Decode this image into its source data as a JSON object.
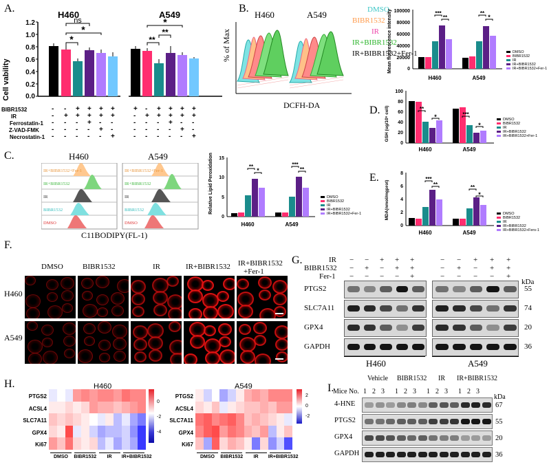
{
  "panels": {
    "A": "A.",
    "B": "B.",
    "C": "C.",
    "D": "D.",
    "E": "E.",
    "F": "F.",
    "G": "G.",
    "H": "H.",
    "I": "I."
  },
  "colors": {
    "black": "#000000",
    "pink": "#ff2d6f",
    "teal": "#1a8c8c",
    "purple": "#5b1f86",
    "lavender": "#b07cff",
    "skyblue": "#72c8ff",
    "orange": "#ffb870",
    "green": "#49d24a",
    "red": "#e84343",
    "cyan": "#5fd6d6"
  },
  "panelA": {
    "h460": "H460",
    "a549": "A549",
    "ylabel": "Cell vability",
    "yticks": [
      "0.0",
      "0.2",
      "0.4",
      "0.6",
      "0.8",
      "1.0",
      "1.2"
    ],
    "sig": {
      "ns": "ns",
      "s1": "*",
      "s2": "*",
      "s3": "**",
      "s4": "**",
      "s5": "*"
    },
    "rows": [
      {
        "label": "BIBR1532",
        "h460": [
          "-",
          "-",
          "+",
          "+",
          "+",
          "+"
        ],
        "a549": [
          "+",
          "-",
          "+",
          "+",
          "+",
          "+"
        ]
      },
      {
        "label": "IR",
        "h460": [
          "-",
          "+",
          "+",
          "+",
          "+",
          "+"
        ],
        "a549": [
          "-",
          "+",
          "+",
          "+",
          "+",
          "+"
        ]
      },
      {
        "label": "Ferrostatin-1",
        "h460": [
          "-",
          "-",
          "-",
          "+",
          "-",
          "-"
        ],
        "a549": [
          "-",
          "-",
          "-",
          "+",
          "-",
          "-"
        ]
      },
      {
        "label": "Z-VAD-FMK",
        "h460": [
          "-",
          "-",
          "-",
          "-",
          "+",
          "-"
        ],
        "a549": [
          "-",
          "-",
          "-",
          "-",
          "+",
          "-"
        ]
      },
      {
        "label": "Necrostatin-1",
        "h460": [
          "-",
          "-",
          "-",
          "-",
          "-",
          "+"
        ],
        "a549": [
          "-",
          "-",
          "-",
          "-",
          "-",
          "+"
        ]
      }
    ]
  },
  "panelB": {
    "h460": "H460",
    "a549": "A549",
    "xlabel": "DCFH-DA",
    "ylabel": "% of Max",
    "legend": [
      "DMSO",
      "BIBR1532",
      "IR",
      "IR+BIBR1532",
      "IR+BIBR1532+Fer-1"
    ],
    "chart_ylabel": "Mean fluorescence intensity",
    "yticks": [
      "0",
      "20000",
      "40000",
      "60000",
      "80000",
      "100000"
    ],
    "groups": [
      "H460",
      "A549"
    ],
    "sig": [
      "***",
      "**",
      "**",
      "*"
    ],
    "legend_small": [
      "DMSO",
      "BIBR1532",
      "IR",
      "IR+BIBR1532",
      "IR+BIBR1532+Fer-1"
    ]
  },
  "panelC": {
    "h460": "H460",
    "a549": "A549",
    "xlabel": "C11BODIPY(FL-1)",
    "tracks": [
      "IR+BIBR1532+Fer-1",
      "IR+BIBR1532",
      "IR",
      "BIBR1532",
      "DMSO"
    ],
    "chart_ylabel": "Relative Lipid Peroxidation",
    "yticks": [
      "0",
      "5",
      "10",
      "15"
    ],
    "groups": [
      "H460",
      "A549"
    ],
    "sig": [
      "**",
      "*",
      "***",
      "**"
    ],
    "legend_small": [
      "DMSO",
      "BIBR1532",
      "IR",
      "IR+BIBR1532",
      "IR+BIBR1532+Fer-1"
    ]
  },
  "panelD": {
    "ylabel": "GSH (ug/10⁶ cell)",
    "yticks": [
      "0",
      "20",
      "40",
      "60",
      "80",
      "100"
    ],
    "groups": [
      "H460",
      "A549"
    ],
    "sig": [
      "**",
      "*",
      "***",
      "*"
    ],
    "legend_small": [
      "DMSO",
      "BIBR1532",
      "IR",
      "IR+BIBR1532",
      "IR+BIBR1532+Fer-1"
    ]
  },
  "panelE": {
    "ylabel": "MDA(nmol/mgprot)",
    "yticks": [
      "0",
      "2",
      "4",
      "6",
      "8"
    ],
    "groups": [
      "H460",
      "A549"
    ],
    "sig": [
      "***",
      "**",
      "**",
      "*"
    ],
    "legend_small": [
      "DMSO",
      "BIBR1532",
      "IR",
      "IR+BIBR1532",
      "IR+BIBR1532+Fers-1"
    ]
  },
  "panelF": {
    "cols": [
      "DMSO",
      "BIBR1532",
      "IR",
      "IR+BIBR1532",
      "IR+BIBR1532",
      "+Fer-1"
    ],
    "rows": [
      "H460",
      "A549"
    ]
  },
  "panelG": {
    "rows": [
      {
        "label": "IR",
        "h460": [
          "−",
          "−",
          "+",
          "+",
          "+"
        ],
        "a549": [
          "−",
          "−",
          "+",
          "+",
          "+"
        ]
      },
      {
        "label": "BIBR1532",
        "h460": [
          "−",
          "+",
          "−",
          "+",
          "+"
        ],
        "a549": [
          "−",
          "+",
          "−",
          "+",
          "+"
        ]
      },
      {
        "label": "Fer-1",
        "h460": [
          "−",
          "−",
          "−",
          "−",
          "+"
        ],
        "a549": [
          "−",
          "−",
          "−",
          "−",
          "+"
        ]
      }
    ],
    "kda": "kDa",
    "blots": [
      {
        "name": "PTGS2",
        "kda": "55"
      },
      {
        "name": "SLC7A11",
        "kda": "74"
      },
      {
        "name": "GPX4",
        "kda": "20"
      },
      {
        "name": "GAPDH",
        "kda": "36"
      }
    ],
    "cells": [
      "H460",
      "A549"
    ]
  },
  "panelH": {
    "h460": "H460",
    "a549": "A549",
    "genes": [
      "PTGS2",
      "ACSL4",
      "SLC7A11",
      "GPX4",
      "Ki67"
    ],
    "groups": [
      "DMSO",
      "BIBR1532",
      "IR",
      "IR+BIBR1532"
    ],
    "scale1": [
      "0",
      "-2",
      "-4"
    ],
    "scale2": [
      "2",
      "0",
      "-2"
    ]
  },
  "panelI": {
    "mice": "Mice No.",
    "groups": [
      "Vehicle",
      "BIBR1532",
      "IR",
      "IR+BIBR1532"
    ],
    "nums": [
      "1",
      "2",
      "3"
    ],
    "kda": "kDa",
    "blots": [
      {
        "name": "4-HNE",
        "kda": "67"
      },
      {
        "name": "PTGS2",
        "kda": "55"
      },
      {
        "name": "GPX4",
        "kda": "20"
      },
      {
        "name": "GAPDH",
        "kda": "36"
      }
    ]
  }
}
